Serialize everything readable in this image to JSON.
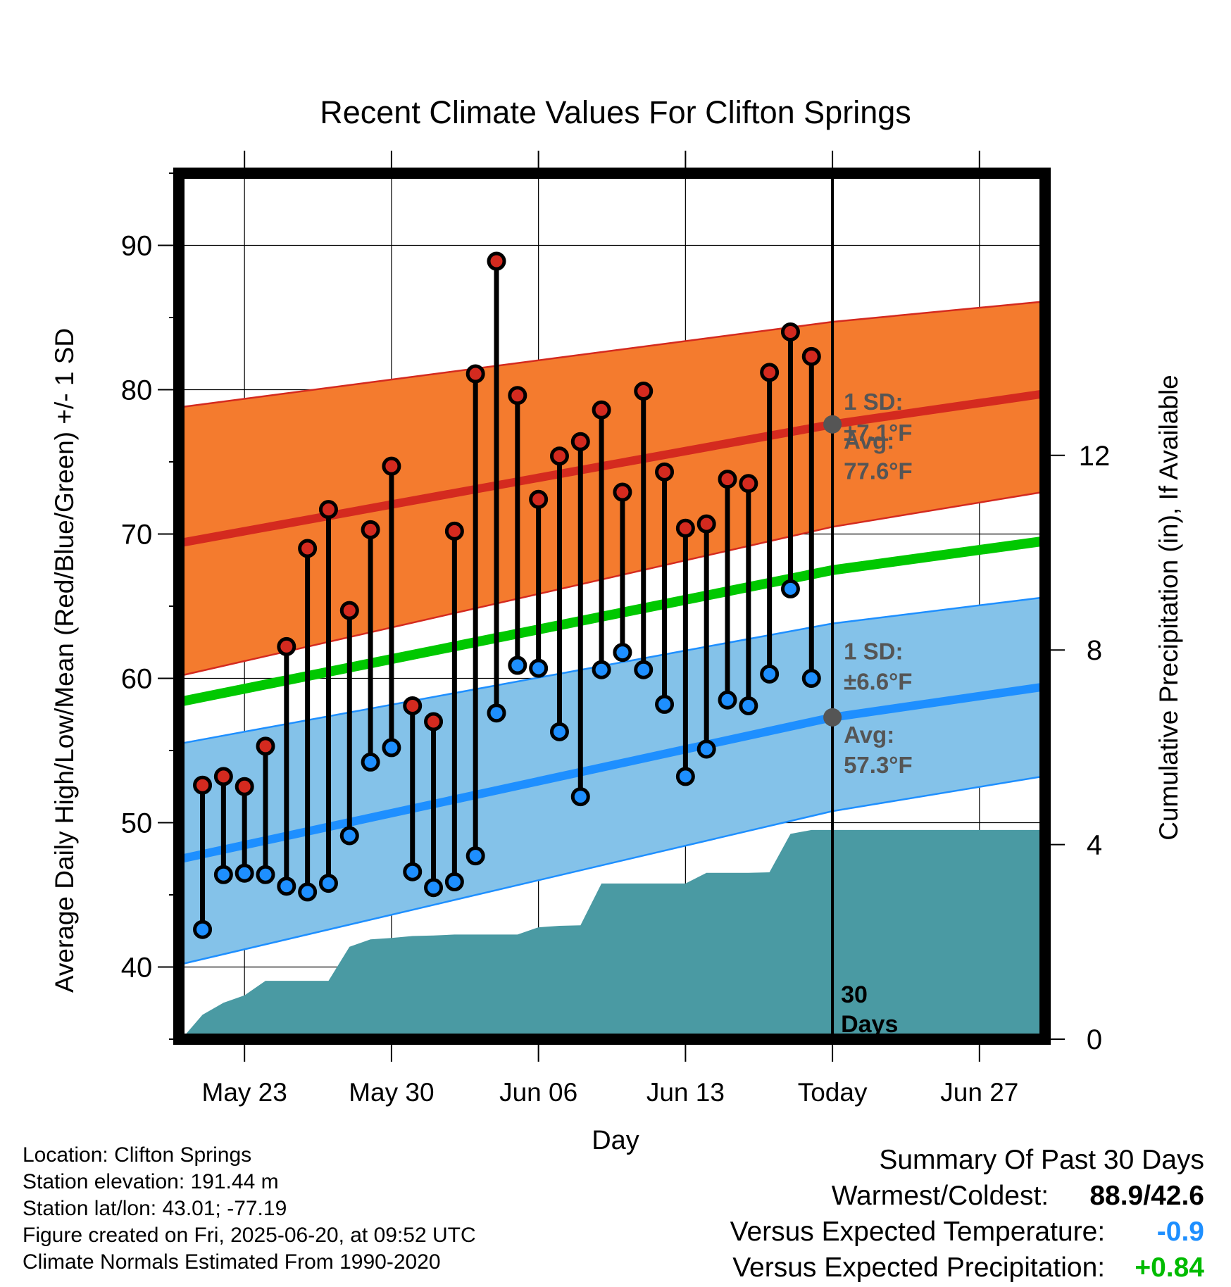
{
  "chart_data": {
    "type": "line",
    "title": "Recent Climate Values For Clifton Springs",
    "xlabel": "Day",
    "ylabel_left": "Average Daily High/Low/Mean (Red/Blue/Green) +/- 1 SD",
    "ylabel_right": "Cumulative Precipitation (in), If Available",
    "y_left_range": [
      35,
      95
    ],
    "y_left_ticks": [
      40,
      50,
      60,
      70,
      80,
      90
    ],
    "y_right_range": [
      0,
      17.8
    ],
    "y_right_ticks": [
      0,
      4,
      8,
      12
    ],
    "x_ticks": [
      "May 23",
      "May 30",
      "Jun 06",
      "Jun 13",
      "Today",
      "Jun 27"
    ],
    "x_tick_dates": [
      "2025-05-23",
      "2025-05-30",
      "2025-06-06",
      "2025-06-13",
      "2025-06-20",
      "2025-06-27"
    ],
    "x_range": [
      "2025-05-19T21:00",
      "2025-06-30T03:00"
    ],
    "grid": true,
    "today": "2025-06-20",
    "today_label": "30\nDays",
    "dates": [
      "2025-05-21",
      "2025-05-22",
      "2025-05-23",
      "2025-05-24",
      "2025-05-25",
      "2025-05-26",
      "2025-05-27",
      "2025-05-28",
      "2025-05-29",
      "2025-05-30",
      "2025-05-31",
      "2025-06-01",
      "2025-06-02",
      "2025-06-03",
      "2025-06-04",
      "2025-06-05",
      "2025-06-06",
      "2025-06-07",
      "2025-06-08",
      "2025-06-09",
      "2025-06-10",
      "2025-06-11",
      "2025-06-12",
      "2025-06-13",
      "2025-06-14",
      "2025-06-15",
      "2025-06-16",
      "2025-06-17",
      "2025-06-18",
      "2025-06-19"
    ],
    "highs": [
      52.6,
      53.2,
      52.5,
      55.3,
      62.2,
      69.0,
      71.7,
      64.7,
      70.3,
      74.7,
      58.1,
      57.0,
      70.2,
      81.1,
      88.9,
      79.6,
      72.4,
      75.4,
      76.4,
      78.6,
      72.9,
      79.9,
      74.3,
      70.4,
      70.7,
      73.8,
      73.5,
      81.2,
      84.0,
      82.3
    ],
    "lows": [
      42.6,
      46.4,
      46.5,
      46.4,
      45.6,
      45.2,
      45.8,
      49.1,
      54.2,
      55.2,
      46.6,
      45.5,
      45.9,
      47.7,
      57.6,
      60.9,
      60.7,
      56.3,
      51.8,
      60.6,
      61.8,
      60.6,
      58.2,
      53.2,
      55.1,
      58.5,
      58.1,
      60.3,
      66.2,
      60.0
    ],
    "normals": {
      "dates": [
        "2025-05-20",
        "2025-06-20",
        "2025-06-30"
      ],
      "high_avg": [
        69.4,
        77.6,
        79.7
      ],
      "high_upper": [
        78.8,
        84.7,
        86.1
      ],
      "high_lower": [
        60.2,
        70.5,
        72.9
      ],
      "mean_avg": [
        58.4,
        67.5,
        69.5
      ],
      "low_avg": [
        47.5,
        57.3,
        59.4
      ],
      "low_upper": [
        55.5,
        63.8,
        65.6
      ],
      "low_lower": [
        40.2,
        50.8,
        53.2
      ]
    },
    "precip": {
      "dates": [
        "2025-05-20",
        "2025-05-21",
        "2025-05-22",
        "2025-05-23",
        "2025-05-24",
        "2025-05-25",
        "2025-05-26",
        "2025-05-27",
        "2025-05-28",
        "2025-05-29",
        "2025-05-30",
        "2025-05-31",
        "2025-06-01",
        "2025-06-02",
        "2025-06-03",
        "2025-06-04",
        "2025-06-05",
        "2025-06-06",
        "2025-06-07",
        "2025-06-08",
        "2025-06-09",
        "2025-06-10",
        "2025-06-11",
        "2025-06-12",
        "2025-06-13",
        "2025-06-14",
        "2025-06-15",
        "2025-06-16",
        "2025-06-17",
        "2025-06-18",
        "2025-06-19",
        "2025-06-20",
        "2025-06-30"
      ],
      "values": [
        0.0,
        0.5,
        0.75,
        0.9,
        1.2,
        1.2,
        1.2,
        1.2,
        1.9,
        2.05,
        2.08,
        2.12,
        2.13,
        2.15,
        2.15,
        2.15,
        2.15,
        2.3,
        2.33,
        2.34,
        3.2,
        3.2,
        3.2,
        3.2,
        3.2,
        3.42,
        3.42,
        3.42,
        3.43,
        4.22,
        4.3,
        4.3,
        4.3
      ]
    },
    "annotations": {
      "high_sd_label": "1 SD:",
      "high_sd_value": "±7.1°F",
      "high_avg_label": "Avg:",
      "high_avg_value": "77.6°F",
      "low_sd_label": "1 SD:",
      "low_sd_value": "±6.6°F",
      "low_avg_label": "Avg:",
      "low_avg_value": "57.3°F",
      "high_avg_today": 77.6,
      "low_avg_today": 57.3
    },
    "colors": {
      "high_band": "#f47b2e",
      "high_line": "#d42a1f",
      "mean_line": "#00c800",
      "low_band": "#84c2e9",
      "low_line": "#1e8fff",
      "precip": "#4a9aa3",
      "high_dot": "#d42a1f",
      "low_dot": "#1e8fff",
      "avg_dot": "#555555",
      "annotation_text": "#555555"
    }
  },
  "footer": {
    "location": "Location: Clifton Springs",
    "elevation": "Station elevation: 191.44 m",
    "latlon": "Station lat/lon: 43.01; -77.19",
    "created": "Figure created on Fri, 2025-06-20, at 09:52 UTC",
    "normals": "Climate Normals Estimated From 1990-2020"
  },
  "summary": {
    "title": "Summary Of Past 30 Days",
    "warm_cold_label": "Warmest/Coldest:",
    "warm_cold_value": "88.9/42.6",
    "temp_label": "Versus Expected Temperature:",
    "temp_value": "-0.9",
    "temp_color": "#1e8fff",
    "precip_label": "Versus Expected Precipitation:",
    "precip_value": "+0.84",
    "precip_color": "#00bb00"
  }
}
